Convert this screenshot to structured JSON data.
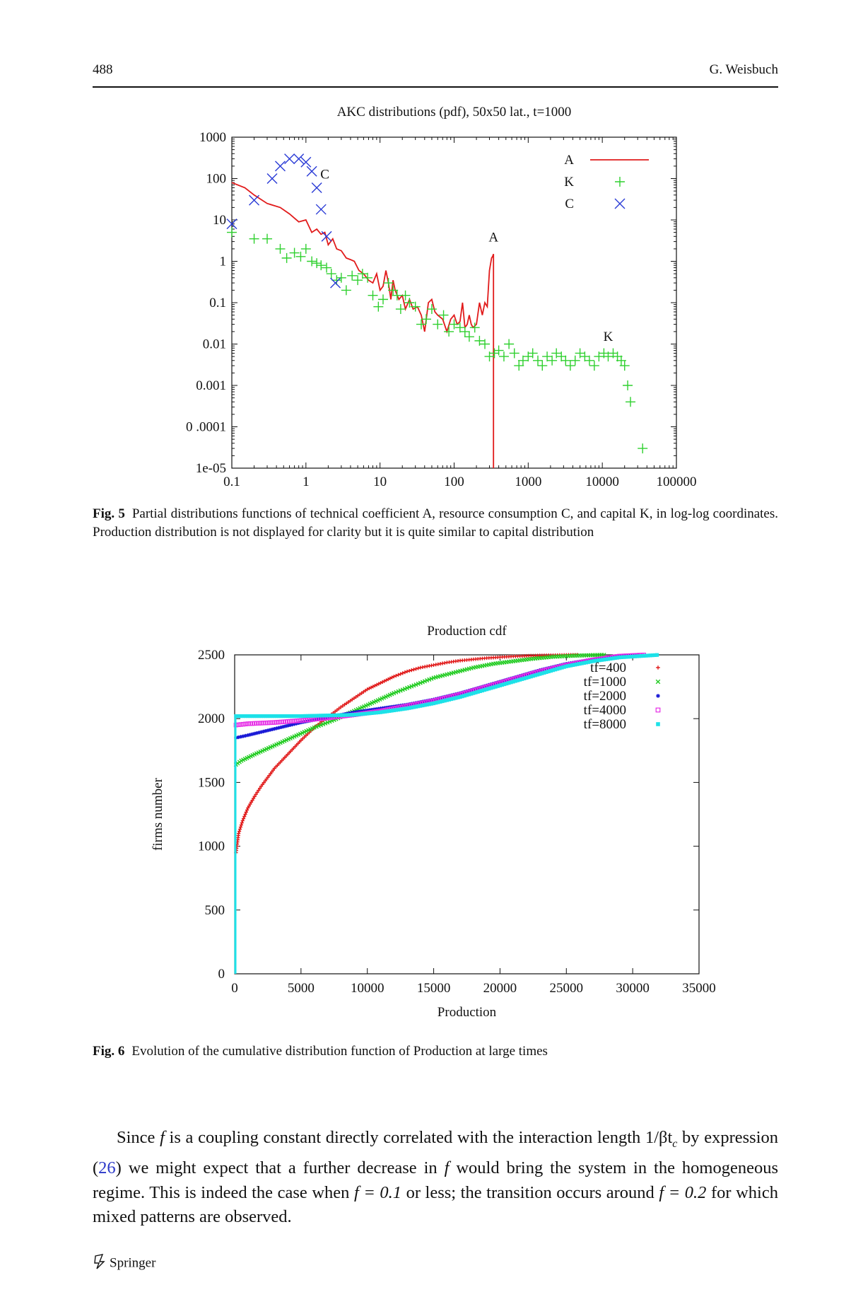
{
  "header": {
    "page_number": "488",
    "author": "G. Weisbuch"
  },
  "fig5": {
    "caption_label": "Fig. 5",
    "caption_text": "Partial distributions functions of technical coefficient A, resource consumption C, and capital K, in log-log coordinates. Production distribution is not displayed for clarity but it is quite similar to capital distribution"
  },
  "fig6": {
    "caption_label": "Fig. 6",
    "caption_text": "Evolution of the cumulative distribution function of Production at large times"
  },
  "body": {
    "t1": "Since ",
    "f": "f",
    "t2": " is a coupling constant directly correlated with the interaction length 1/βt",
    "sub": "c",
    "t3": " by expression (",
    "ref": "26",
    "t4": ") we might expect that a further decrease in ",
    "t5": " would bring the system in the homogeneous regime. This is indeed the case when ",
    "eq1": "f = 0.1",
    "t6": " or less; the transition occurs around ",
    "eq2": "f = 0.2",
    "t7": " for which mixed patterns are observed."
  },
  "footer": {
    "publisher": "Springer"
  },
  "chart_data": [
    {
      "type": "scatter",
      "title": "AKC distributions (pdf), 50x50 lat., t=1000",
      "xlabel": "",
      "ylabel": "",
      "xscale": "log",
      "yscale": "log",
      "xlim": [
        0.1,
        100000
      ],
      "ylim": [
        1e-05,
        1000
      ],
      "x_ticks": [
        "0.1",
        "1",
        "10",
        "100",
        "1000",
        "10000",
        "100000"
      ],
      "y_ticks": [
        "1e-05",
        "0 .0001",
        "0.001",
        "0.01",
        "0.1",
        "1",
        "10",
        "100",
        "1000"
      ],
      "legend_position": "top-right",
      "annotations": [
        {
          "text": "C",
          "x": 1.8,
          "y": 100
        },
        {
          "text": "A",
          "x": 340,
          "y": 3
        },
        {
          "text": "K",
          "x": 12000,
          "y": 0.012
        }
      ],
      "series": [
        {
          "name": "A",
          "style": "line",
          "color": "#e11b1b",
          "x": [
            0.1,
            0.15,
            0.2,
            0.3,
            0.45,
            0.6,
            0.8,
            1.0,
            1.2,
            1.4,
            1.6,
            1.8,
            2.0,
            2.3,
            2.6,
            3.0,
            3.5,
            4.0,
            4.5,
            5.2,
            6,
            7,
            8,
            9,
            10,
            11,
            12,
            13,
            14,
            15,
            16,
            18,
            20,
            22,
            25,
            28,
            32,
            36,
            40,
            45,
            50,
            55,
            60,
            70,
            80,
            90,
            100,
            110,
            120,
            130,
            140,
            150,
            160,
            170,
            180,
            200,
            220,
            240,
            260,
            280,
            300,
            320,
            330,
            340,
            340
          ],
          "y": [
            80,
            60,
            40,
            25,
            20,
            14,
            9,
            10,
            5,
            6,
            4.5,
            5,
            2.5,
            3.5,
            2,
            1.8,
            1.2,
            1.1,
            1,
            0.6,
            0.5,
            0.35,
            0.3,
            0.5,
            0.2,
            0.25,
            0.6,
            0.3,
            0.12,
            0.35,
            0.2,
            0.12,
            0.15,
            0.07,
            0.12,
            0.07,
            0.08,
            0.05,
            0.02,
            0.1,
            0.12,
            0.06,
            0.05,
            0.04,
            0.02,
            0.04,
            0.05,
            0.03,
            0.035,
            0.1,
            0.025,
            0.03,
            0.05,
            0.03,
            0.025,
            0.03,
            0.1,
            0.05,
            0.1,
            0.08,
            0.6,
            1.2,
            1.3,
            1.5,
            1e-05
          ]
        },
        {
          "name": "K",
          "style": "plus",
          "color": "#2fd02f",
          "x": [
            0.1,
            0.2,
            0.3,
            0.45,
            0.55,
            0.7,
            0.85,
            1.0,
            1.2,
            1.4,
            1.6,
            1.9,
            2.2,
            2.6,
            3,
            3.5,
            4.2,
            5,
            5.8,
            6.8,
            8,
            9.5,
            11,
            13,
            15,
            17,
            19,
            22,
            25,
            30,
            36,
            42,
            50,
            60,
            72,
            85,
            100,
            120,
            140,
            160,
            190,
            220,
            260,
            300,
            350,
            400,
            470,
            550,
            650,
            750,
            850,
            1000,
            1150,
            1350,
            1550,
            1800,
            2100,
            2400,
            2800,
            3200,
            3700,
            4300,
            5000,
            5800,
            6700,
            7800,
            9000,
            10500,
            12000,
            14000,
            16000,
            18000,
            20000,
            22000,
            24000,
            35000
          ],
          "y": [
            5,
            3.5,
            3.5,
            2,
            1.2,
            1.6,
            1.3,
            2,
            1,
            0.9,
            0.8,
            0.7,
            0.5,
            0.35,
            0.4,
            0.2,
            0.45,
            0.35,
            0.5,
            0.4,
            0.15,
            0.08,
            0.12,
            0.3,
            0.2,
            0.15,
            0.07,
            0.15,
            0.1,
            0.08,
            0.03,
            0.04,
            0.07,
            0.03,
            0.05,
            0.02,
            0.03,
            0.025,
            0.02,
            0.015,
            0.025,
            0.012,
            0.01,
            0.005,
            0.006,
            0.007,
            0.005,
            0.01,
            0.006,
            0.003,
            0.004,
            0.005,
            0.006,
            0.004,
            0.003,
            0.005,
            0.004,
            0.006,
            0.005,
            0.004,
            0.003,
            0.004,
            0.006,
            0.005,
            0.004,
            0.003,
            0.005,
            0.006,
            0.005,
            0.006,
            0.005,
            0.004,
            0.003,
            0.001,
            0.0004,
            3e-05
          ]
        },
        {
          "name": "C",
          "style": "cross",
          "color": "#2a3bd6",
          "x": [
            0.1,
            0.2,
            0.35,
            0.45,
            0.6,
            0.8,
            1.0,
            1.2,
            1.4,
            1.6,
            1.9,
            2.5
          ],
          "y": [
            8,
            30,
            100,
            200,
            300,
            300,
            250,
            150,
            60,
            18,
            4,
            0.3
          ]
        }
      ]
    },
    {
      "type": "scatter",
      "title": "Production cdf",
      "xlabel": "Production",
      "ylabel": "firms number",
      "xlim": [
        0,
        35000
      ],
      "ylim": [
        0,
        2500
      ],
      "x_ticks": [
        "0",
        "5000",
        "10000",
        "15000",
        "20000",
        "25000",
        "30000",
        "35000"
      ],
      "y_ticks": [
        "0",
        "500",
        "1000",
        "1500",
        "2000",
        "2500"
      ],
      "legend_position": "top-right",
      "series": [
        {
          "name": "tf=400",
          "marker": "+",
          "color": "#e11b1b",
          "x": [
            0,
            100,
            300,
            600,
            1000,
            1500,
            2000,
            3000,
            4000,
            5000,
            6000,
            7000,
            8000,
            9000,
            10000,
            11000,
            12000,
            13000,
            14000,
            15000,
            16000,
            17000,
            18000,
            19000,
            20000,
            21000,
            22000,
            23000,
            24000,
            25000,
            26000
          ],
          "y": [
            0,
            950,
            1100,
            1200,
            1300,
            1390,
            1470,
            1610,
            1720,
            1830,
            1930,
            2010,
            2090,
            2160,
            2230,
            2280,
            2330,
            2370,
            2400,
            2420,
            2440,
            2455,
            2465,
            2475,
            2482,
            2488,
            2492,
            2495,
            2497,
            2499,
            2500
          ]
        },
        {
          "name": "tf=1000",
          "marker": "×",
          "color": "#22cc22",
          "x": [
            0,
            100,
            500,
            1500,
            3000,
            4500,
            6000,
            7500,
            9000,
            10500,
            12000,
            13500,
            15000,
            16500,
            18000,
            19500,
            21000,
            22500,
            24000,
            25500,
            27000,
            28000
          ],
          "y": [
            0,
            1640,
            1670,
            1720,
            1790,
            1860,
            1930,
            1990,
            2060,
            2130,
            2200,
            2260,
            2320,
            2360,
            2400,
            2430,
            2450,
            2470,
            2485,
            2493,
            2498,
            2500
          ]
        },
        {
          "name": "tf=2000",
          "marker": "*",
          "color": "#1a1ad6",
          "x": [
            0,
            100,
            1000,
            3000,
            5000,
            7000,
            9000,
            11000,
            13000,
            15000,
            17000,
            19000,
            21000,
            23000,
            25000,
            27000,
            29000,
            30500
          ],
          "y": [
            0,
            1850,
            1870,
            1920,
            1970,
            2010,
            2050,
            2080,
            2110,
            2150,
            2200,
            2260,
            2320,
            2380,
            2430,
            2465,
            2490,
            2500
          ]
        },
        {
          "name": "tf=4000",
          "marker": "□",
          "color": "#e62ee6",
          "x": [
            0,
            100,
            1000,
            3000,
            5000,
            7000,
            9000,
            11000,
            13000,
            15000,
            17000,
            19000,
            21000,
            23000,
            25000,
            27000,
            29000,
            31000
          ],
          "y": [
            0,
            1950,
            1960,
            1970,
            1985,
            2005,
            2030,
            2060,
            2100,
            2140,
            2190,
            2250,
            2310,
            2370,
            2420,
            2460,
            2490,
            2500
          ]
        },
        {
          "name": "tf=8000",
          "marker": "■",
          "color": "#1de1e8",
          "x": [
            0,
            100,
            1000,
            3000,
            5000,
            7000,
            9000,
            11000,
            13000,
            15000,
            17000,
            19000,
            21000,
            23000,
            25000,
            27000,
            29000,
            32000
          ],
          "y": [
            0,
            2020,
            2020,
            2020,
            2020,
            2025,
            2030,
            2050,
            2080,
            2120,
            2170,
            2230,
            2290,
            2350,
            2410,
            2450,
            2480,
            2500
          ]
        }
      ]
    }
  ]
}
